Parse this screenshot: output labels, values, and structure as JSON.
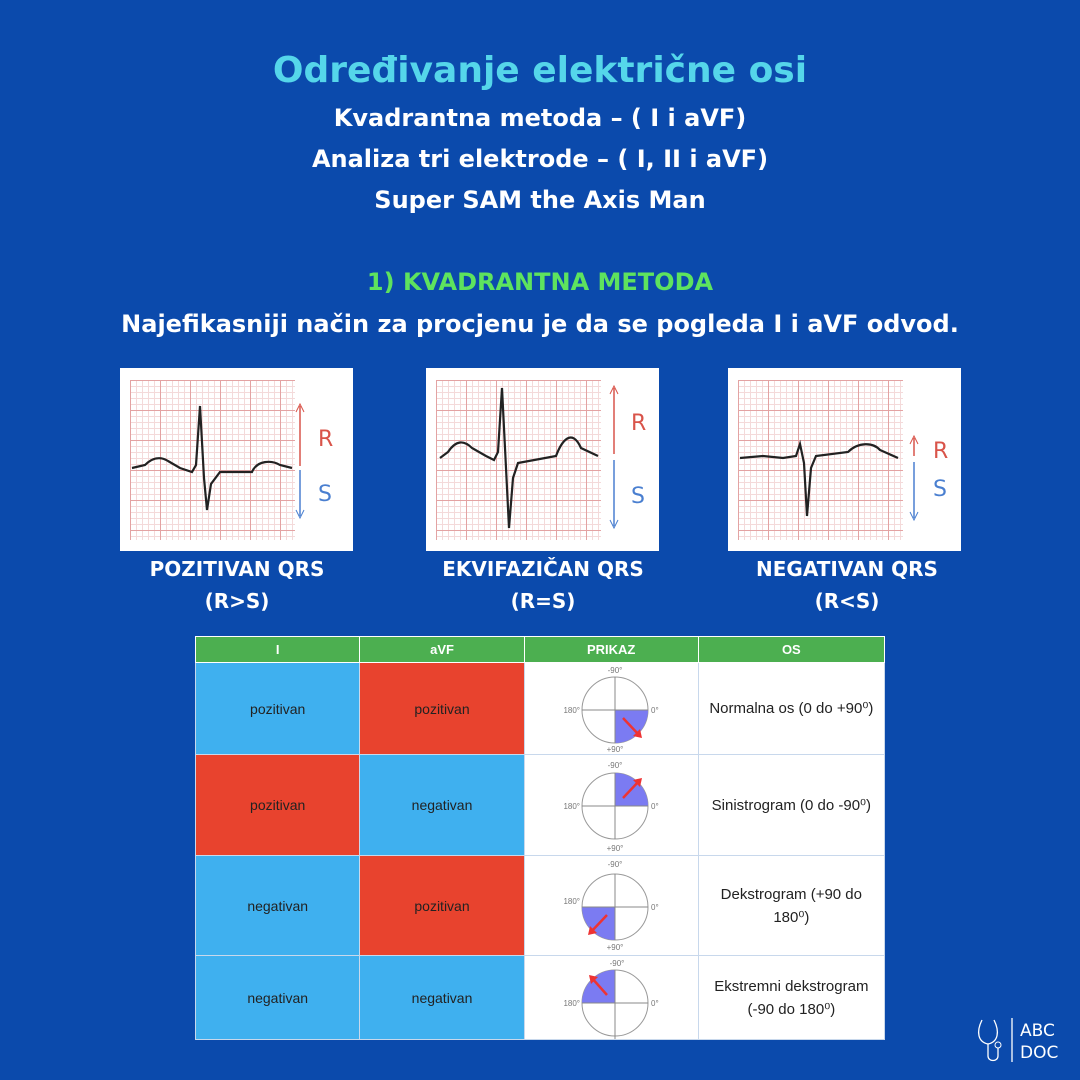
{
  "header": {
    "title": "Određivanje električne osi",
    "subtitles": [
      "Kvadrantna metoda – ( I i aVF)",
      "Analiza tri elektrode – ( I,  II i aVF)",
      "Super SAM the Axis Man"
    ]
  },
  "section": {
    "heading": "1) KVADRANTNA METODA",
    "intro": "Najefikasniji način za procjenu je da se pogleda  I i  aVF odvod."
  },
  "ecg_panels": [
    {
      "r_label": "R",
      "s_label": "S",
      "caption": "POZITIVAN QRS",
      "rule": "(R>S)"
    },
    {
      "r_label": "R",
      "s_label": "S",
      "caption": "EKVIFAZIČAN QRS",
      "rule": "(R=S)"
    },
    {
      "r_label": "R",
      "s_label": "S",
      "caption": "NEGATIVAN QRS",
      "rule": "(R<S)"
    }
  ],
  "table": {
    "header": [
      "I",
      "aVF",
      "PRIKAZ",
      "OS"
    ],
    "rows": [
      {
        "cells": [
          "pozitivan",
          "pozitivan"
        ],
        "diagram": [
          "-90°",
          "180°",
          "0°",
          "+90°"
        ],
        "axis": "Normalna os (0 do +90⁰)"
      },
      {
        "cells": [
          "pozitivan",
          "negativan"
        ],
        "diagram": [
          "-90°",
          "180°",
          "0°",
          "+90°"
        ],
        "axis": "Sinistrogram (0 do -90⁰)"
      },
      {
        "cells": [
          "negativan",
          "pozitivan"
        ],
        "diagram": [
          "-90°",
          "180°",
          "0°",
          "+90°"
        ],
        "axis": "Dekstrogram (+90 do 180⁰)"
      },
      {
        "cells": [
          "negativan",
          "negativan"
        ],
        "diagram": [
          "-90°",
          "180°",
          "0°"
        ],
        "axis": "Ekstremni dekstrogram (-90 do 180⁰)"
      }
    ]
  },
  "logo": [
    "ABC",
    "DOC"
  ]
}
